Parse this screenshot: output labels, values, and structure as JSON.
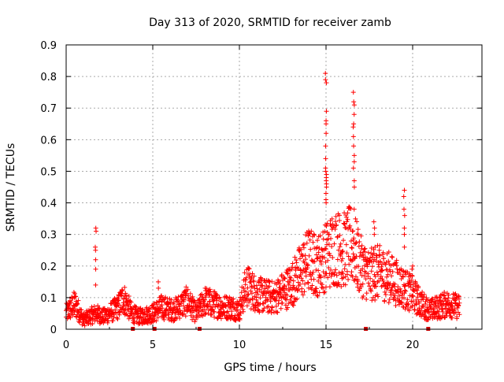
{
  "chart_data": {
    "type": "scatter",
    "title": "Day 313 of 2020, SRMTID for receiver zamb",
    "xlabel": "GPS time / hours",
    "ylabel": "SRMTID / TECUs",
    "xlim": [
      0,
      24
    ],
    "ylim": [
      0,
      0.9
    ],
    "xticks": [
      "0",
      "5",
      "10",
      "15",
      "20"
    ],
    "yticks": [
      "0",
      "0.1",
      "0.2",
      "0.3",
      "0.4",
      "0.5",
      "0.6",
      "0.7",
      "0.8",
      "0.9"
    ],
    "grid": true,
    "marker": "+",
    "color": "#ff0000",
    "gap_marker_color": "#cc0000",
    "gap_markers_x": [
      3.85,
      5.1,
      7.7,
      17.3,
      20.9
    ],
    "x_end_hours": 22.7,
    "series": [
      {
        "name": "SRMTID",
        "profile_x": [
          0,
          0.5,
          1,
          1.7,
          2.2,
          3,
          3.3,
          3.8,
          4.2,
          5,
          5.5,
          6.2,
          7,
          7.5,
          8,
          8.5,
          9,
          9.5,
          10,
          10.4,
          11,
          12,
          12.5,
          13,
          13.5,
          14,
          14.5,
          15,
          15.5,
          16,
          16.5,
          17,
          17.5,
          18,
          18.5,
          19,
          19.5,
          20,
          20.5,
          21,
          21.5,
          22,
          22.7
        ],
        "profile_y": [
          0.05,
          0.08,
          0.03,
          0.05,
          0.04,
          0.07,
          0.1,
          0.05,
          0.04,
          0.05,
          0.07,
          0.06,
          0.09,
          0.05,
          0.09,
          0.08,
          0.07,
          0.07,
          0.06,
          0.14,
          0.11,
          0.1,
          0.12,
          0.14,
          0.18,
          0.22,
          0.2,
          0.23,
          0.26,
          0.25,
          0.27,
          0.2,
          0.17,
          0.18,
          0.17,
          0.15,
          0.13,
          0.11,
          0.08,
          0.06,
          0.07,
          0.08,
          0.07
        ],
        "spikes": [
          {
            "x": 1.7,
            "values": [
              0.32,
              0.31,
              0.26,
              0.25,
              0.22,
              0.19,
              0.14
            ]
          },
          {
            "x": 5.3,
            "values": [
              0.15,
              0.13
            ]
          },
          {
            "x": 15.0,
            "values": [
              0.81,
              0.79,
              0.78,
              0.69,
              0.66,
              0.65,
              0.62,
              0.58,
              0.54,
              0.51,
              0.5,
              0.49,
              0.48,
              0.47,
              0.46,
              0.45,
              0.43,
              0.41,
              0.4
            ]
          },
          {
            "x": 16.6,
            "values": [
              0.75,
              0.72,
              0.71,
              0.68,
              0.65,
              0.64,
              0.61,
              0.58,
              0.55,
              0.53,
              0.51,
              0.47,
              0.45,
              0.38
            ]
          },
          {
            "x": 17.8,
            "values": [
              0.34,
              0.32,
              0.3,
              0.26,
              0.24
            ]
          },
          {
            "x": 19.5,
            "values": [
              0.44,
              0.42,
              0.38,
              0.36,
              0.32,
              0.3,
              0.26
            ]
          },
          {
            "x": 20.0,
            "values": [
              0.2,
              0.19,
              0.17
            ]
          }
        ]
      }
    ]
  }
}
